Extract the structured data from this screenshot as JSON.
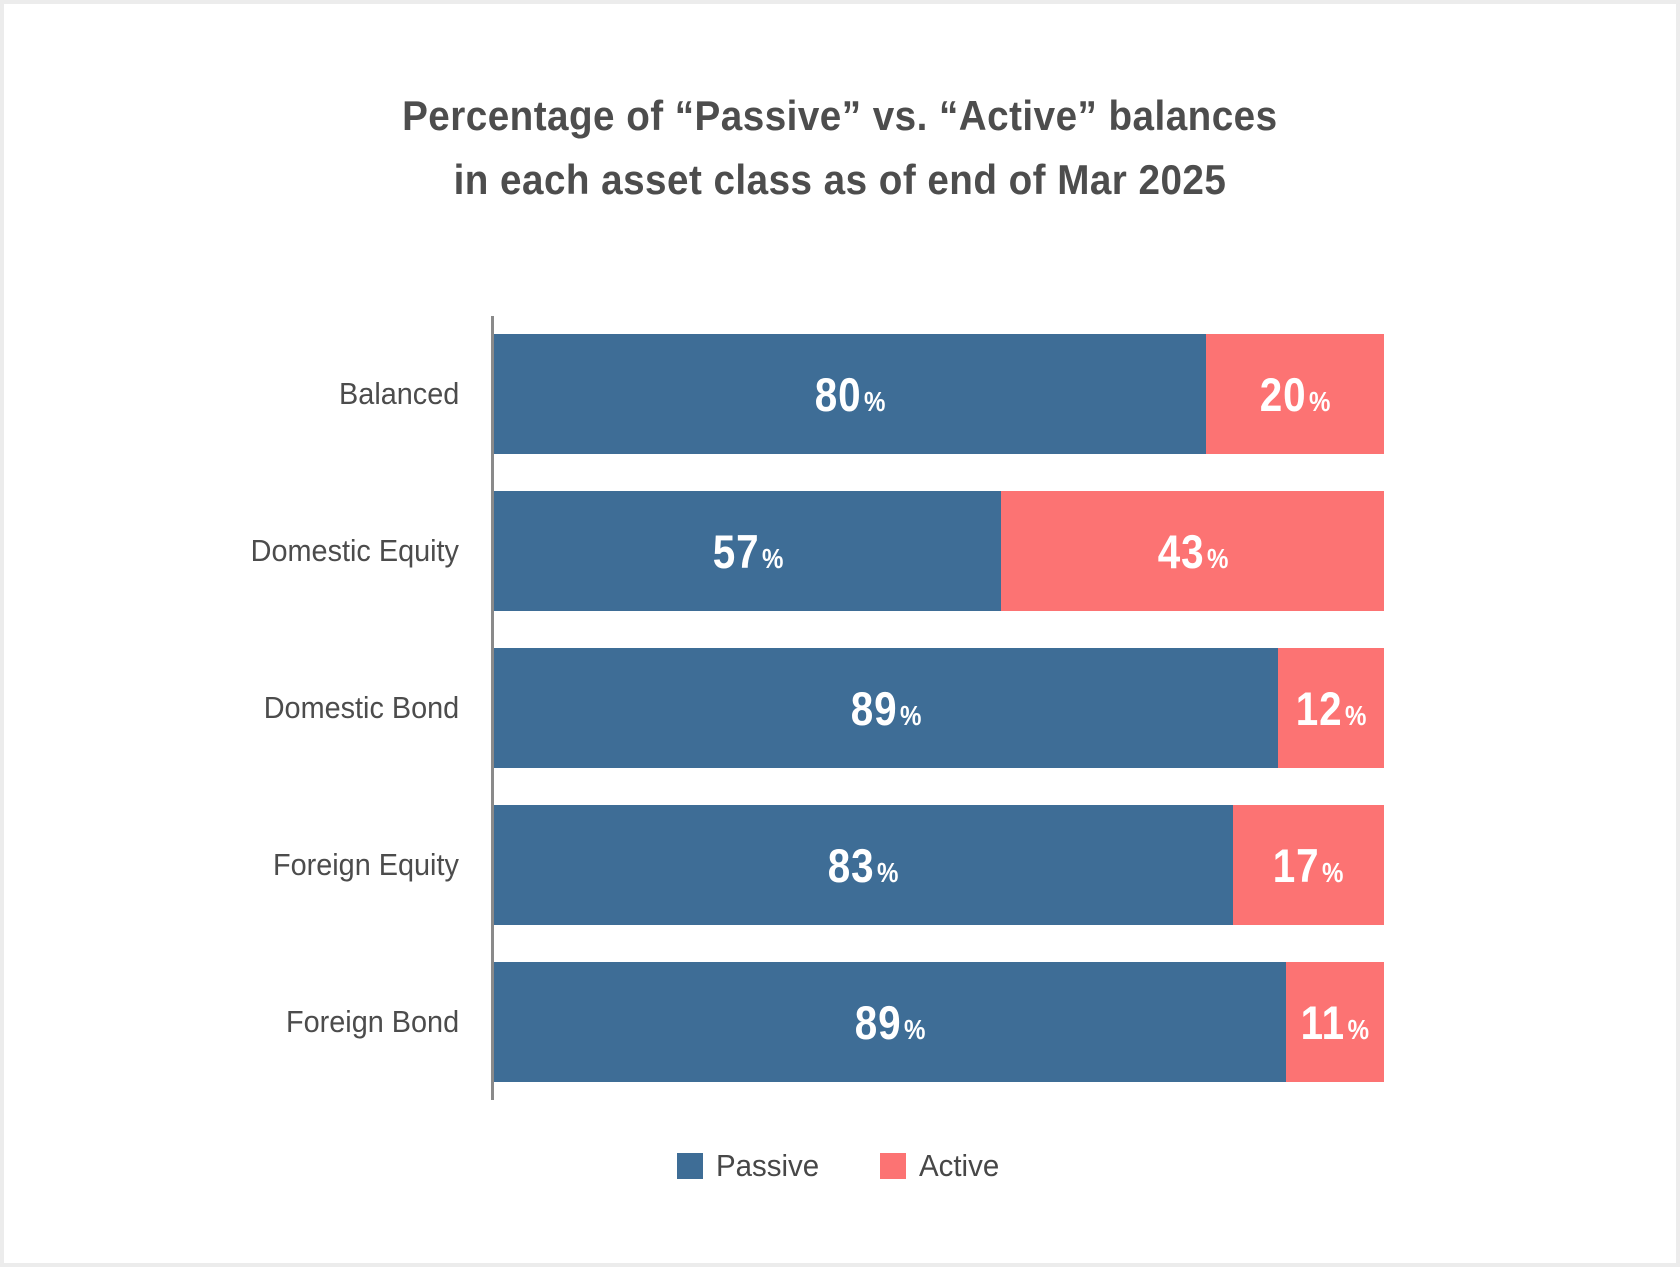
{
  "title": {
    "line1": "Percentage of “Passive” vs. “Active” balances",
    "line2": "in each asset class as of end of Mar 2025"
  },
  "chart_data": {
    "type": "bar",
    "orientation": "horizontal",
    "stacked": true,
    "percent_stacked": true,
    "title": "Percentage of “Passive” vs. “Active” balances in each asset class as of end of Mar 2025",
    "categories": [
      "Balanced",
      "Domestic Equity",
      "Domestic Bond",
      "Foreign Equity",
      "Foreign Bond"
    ],
    "series": [
      {
        "name": "Passive",
        "color": "#3e6d96",
        "values": [
          80,
          57,
          89,
          83,
          89
        ]
      },
      {
        "name": "Active",
        "color": "#fc7373",
        "values": [
          20,
          43,
          12,
          17,
          11
        ]
      }
    ],
    "value_suffix": "%",
    "value_labels": "inside-center",
    "xlim": [
      0,
      100
    ],
    "grid": false,
    "axis_line": "left-vertical",
    "legend_position": "bottom"
  },
  "legend": {
    "items": [
      {
        "label": "Passive",
        "color": "#3e6d96"
      },
      {
        "label": "Active",
        "color": "#fc7373"
      }
    ]
  },
  "style": {
    "passive_color": "#3e6d96",
    "active_color": "#fc7373",
    "text_color": "#4d4d4d",
    "axis_line_color": "#8a8a8a",
    "frame_border_color": "#ececec",
    "background_color": "#ffffff",
    "bar_label_color": "#ffffff"
  }
}
